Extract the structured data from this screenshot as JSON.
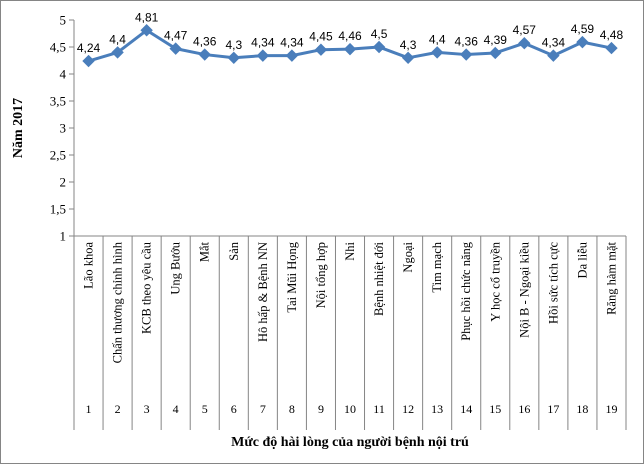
{
  "chart_data": {
    "type": "line",
    "ylabel": "Năm 2017",
    "xlabel": "Mức độ hài lòng của người bệnh nội trú",
    "ylim": [
      1,
      5
    ],
    "yticks": [
      "1",
      "1,5",
      "2",
      "2,5",
      "3",
      "3,5",
      "4",
      "4,5",
      "5"
    ],
    "grid": false,
    "legend": "none",
    "categories": [
      "Lão khoa",
      "Chấn thương chỉnh hình",
      "KCB theo yêu cầu",
      "Ung Bướu",
      "Mắt",
      "Sản",
      "Hô hấp & Bệnh NN",
      "Tai Mũi Họng",
      "Nội tổng hợp",
      "Nhi",
      "Bệnh nhiệt đới",
      "Ngoại",
      "Tim mạch",
      "Phục hồi chức năng",
      "Y học cổ truyền",
      "Nội B - Ngoại kiều",
      "Hồi sức tích cực",
      "Da liễu",
      "Răng hàm mặt"
    ],
    "indices": [
      "1",
      "2",
      "3",
      "4",
      "5",
      "6",
      "7",
      "8",
      "9",
      "10",
      "11",
      "12",
      "13",
      "14",
      "15",
      "16",
      "17",
      "18",
      "19"
    ],
    "values": [
      4.24,
      4.4,
      4.81,
      4.47,
      4.36,
      4.3,
      4.34,
      4.34,
      4.45,
      4.46,
      4.5,
      4.3,
      4.4,
      4.36,
      4.39,
      4.57,
      4.34,
      4.59,
      4.48
    ],
    "value_labels": [
      "4,24",
      "4,4",
      "4,81",
      "4,47",
      "4,36",
      "4,3",
      "4,34",
      "4,34",
      "4,45",
      "4,46",
      "4,5",
      "4,3",
      "4,4",
      "4,36",
      "4,39",
      "4,57",
      "4,34",
      "4,59",
      "4,48"
    ],
    "series_color": "#4a7ebb",
    "marker": "diamond"
  }
}
